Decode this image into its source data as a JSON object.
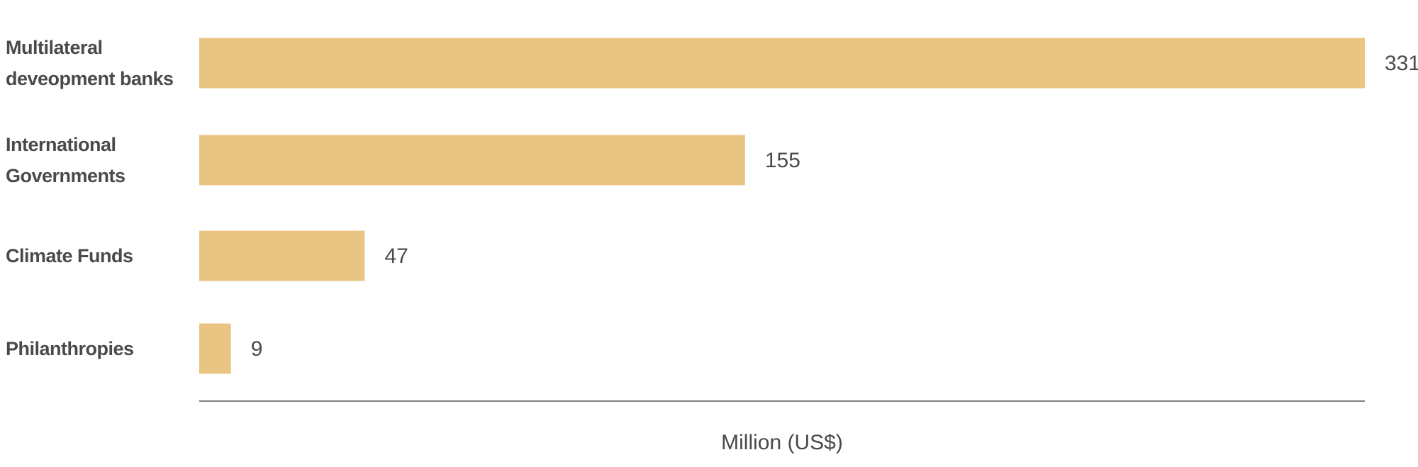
{
  "chart_data": {
    "type": "bar",
    "orientation": "horizontal",
    "categories": [
      "Multilateral deveopment banks",
      "International Governments",
      "Climate Funds",
      "Philanthropies"
    ],
    "values": [
      331,
      155,
      47,
      9
    ],
    "color": "#e8c582",
    "xlim": [
      0,
      331
    ],
    "x_label": "Million (US$)"
  }
}
